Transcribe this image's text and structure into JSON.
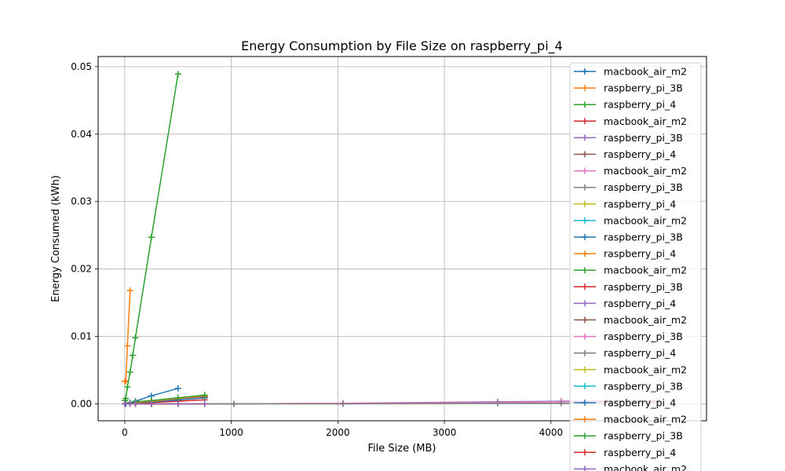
{
  "chart_data": {
    "type": "line",
    "title": "Energy Consumption by File Size on raspberry_pi_4",
    "xlabel": "File Size (MB)",
    "ylabel": "Energy Consumed (kWh)",
    "xlim": [
      -250,
      5460
    ],
    "ylim": [
      -0.0025,
      0.0515
    ],
    "xticks": [
      0,
      1000,
      2000,
      3000,
      4000
    ],
    "yticks": [
      0.0,
      0.01,
      0.02,
      0.03,
      0.04,
      0.05
    ],
    "xtick_labels": [
      "0",
      "1000",
      "2000",
      "3000",
      "4000"
    ],
    "ytick_labels": [
      "0.00",
      "0.01",
      "0.02",
      "0.03",
      "0.04",
      "0.05"
    ],
    "grid": true,
    "legend_position": "right",
    "series": [
      {
        "name": "macbook_air_m2",
        "color": "#1f77b4",
        "x": [
          1,
          10,
          50,
          100,
          250,
          500
        ],
        "y": [
          2e-05,
          5e-05,
          0.0002,
          0.0004,
          0.0012,
          0.0023
        ]
      },
      {
        "name": "raspberry_pi_3B",
        "color": "#ff7f0e",
        "x": [
          1,
          10,
          25,
          50
        ],
        "y": [
          0.0033,
          0.0034,
          0.0086,
          0.0168
        ]
      },
      {
        "name": "raspberry_pi_4",
        "color": "#2ca02c",
        "x": [
          1,
          10,
          25,
          50,
          75,
          100,
          250,
          500
        ],
        "y": [
          0.0005,
          0.0008,
          0.0025,
          0.0047,
          0.0072,
          0.0098,
          0.0247,
          0.0489
        ]
      },
      {
        "name": "macbook_air_m2",
        "color": "#d62728",
        "x": [
          1,
          50,
          100,
          250,
          500,
          750
        ],
        "y": [
          0.0,
          0.0001,
          0.0001,
          0.0002,
          0.0004,
          0.0006
        ]
      },
      {
        "name": "raspberry_pi_3B",
        "color": "#9467bd",
        "x": [
          1,
          50,
          100,
          250,
          500,
          750
        ],
        "y": [
          0.0,
          0.0001,
          0.0002,
          0.0003,
          0.0006,
          0.0009
        ]
      },
      {
        "name": "raspberry_pi_4",
        "color": "#8c564b",
        "x": [
          1,
          50,
          100,
          250,
          500,
          750
        ],
        "y": [
          0.0,
          0.0001,
          0.0002,
          0.0004,
          0.0008,
          0.0011
        ]
      },
      {
        "name": "macbook_air_m2",
        "color": "#e377c2",
        "x": [
          1,
          50,
          100,
          250,
          500,
          750
        ],
        "y": [
          0.0,
          0.0,
          0.0,
          0.0,
          0.0,
          0.0
        ]
      },
      {
        "name": "raspberry_pi_3B",
        "color": "#7f7f7f",
        "x": [
          1,
          50,
          100,
          250,
          500,
          750
        ],
        "y": [
          0.0,
          0.0,
          0.0,
          0.0,
          0.0,
          0.0
        ]
      },
      {
        "name": "raspberry_pi_4",
        "color": "#bcbd22",
        "x": [
          1,
          50,
          100,
          250,
          500,
          750
        ],
        "y": [
          0.0,
          0.0,
          0.0,
          0.0,
          0.0,
          0.0
        ]
      },
      {
        "name": "macbook_air_m2",
        "color": "#17becf",
        "x": [
          1,
          50,
          100,
          250,
          500,
          750
        ],
        "y": [
          0.0,
          0.0,
          0.0,
          0.0,
          0.0,
          0.0
        ]
      },
      {
        "name": "raspberry_pi_3B",
        "color": "#1f77b4",
        "x": [
          1,
          50,
          100,
          250,
          500,
          750
        ],
        "y": [
          0.0,
          0.0001,
          0.0002,
          0.0003,
          0.0006,
          0.0009
        ]
      },
      {
        "name": "raspberry_pi_4",
        "color": "#ff7f0e",
        "x": [
          1,
          50,
          100,
          250,
          500,
          750
        ],
        "y": [
          0.0,
          0.0001,
          0.0002,
          0.0004,
          0.0008,
          0.0012
        ]
      },
      {
        "name": "macbook_air_m2",
        "color": "#2ca02c",
        "x": [
          1,
          50,
          100,
          250,
          500,
          750
        ],
        "y": [
          0.0,
          0.0001,
          0.0003,
          0.0005,
          0.0009,
          0.0013
        ]
      },
      {
        "name": "raspberry_pi_3B",
        "color": "#d62728",
        "x": [
          1,
          50,
          100,
          250,
          500,
          750
        ],
        "y": [
          0.0,
          0.0,
          0.0,
          0.0,
          0.0,
          0.0
        ]
      },
      {
        "name": "raspberry_pi_4",
        "color": "#9467bd",
        "x": [
          1,
          1024,
          2048,
          3500,
          4096,
          5000
        ],
        "y": [
          0.0,
          0.0,
          0.0001,
          0.0003,
          0.0004,
          0.0005
        ]
      },
      {
        "name": "macbook_air_m2",
        "color": "#8c564b",
        "x": [
          1,
          50,
          100,
          250,
          500,
          750
        ],
        "y": [
          0.0,
          0.0,
          0.0,
          0.0,
          0.0,
          0.0
        ]
      },
      {
        "name": "raspberry_pi_3B",
        "color": "#e377c2",
        "x": [
          1,
          1024,
          2048,
          3500,
          4096,
          5000
        ],
        "y": [
          0.0,
          0.0,
          0.0001,
          0.0002,
          0.0003,
          0.0004
        ]
      },
      {
        "name": "raspberry_pi_4",
        "color": "#7f7f7f",
        "x": [
          1,
          1024,
          2048,
          3500,
          4096,
          5000
        ],
        "y": [
          0.0,
          0.0,
          0.0,
          0.0001,
          0.0001,
          0.0002
        ]
      },
      {
        "name": "macbook_air_m2",
        "color": "#bcbd22",
        "x": [
          1,
          50,
          100,
          250,
          500,
          750
        ],
        "y": [
          0.0,
          0.0,
          0.0,
          0.0,
          0.0,
          0.0
        ]
      },
      {
        "name": "raspberry_pi_3B",
        "color": "#17becf",
        "x": [
          1,
          50,
          100,
          250,
          500,
          750
        ],
        "y": [
          0.0,
          0.0,
          0.0,
          0.0,
          0.0,
          0.0
        ]
      },
      {
        "name": "raspberry_pi_4",
        "color": "#1f77b4",
        "x": [
          1,
          50,
          100,
          250,
          500,
          750
        ],
        "y": [
          0.0,
          0.0,
          0.0,
          0.0,
          0.0,
          0.0
        ]
      },
      {
        "name": "macbook_air_m2",
        "color": "#ff7f0e",
        "x": [
          1,
          50,
          100,
          250,
          500,
          750
        ],
        "y": [
          0.0,
          0.0,
          0.0,
          0.0,
          0.0,
          0.0
        ]
      },
      {
        "name": "raspberry_pi_3B",
        "color": "#2ca02c",
        "x": [
          1,
          50,
          100,
          250,
          500,
          750
        ],
        "y": [
          0.0,
          0.0,
          0.0,
          0.0,
          0.0,
          0.0
        ]
      },
      {
        "name": "raspberry_pi_4",
        "color": "#d62728",
        "x": [
          1,
          50,
          100,
          250,
          500,
          750
        ],
        "y": [
          0.0,
          0.0,
          0.0,
          0.0,
          0.0,
          0.0
        ]
      },
      {
        "name": "macbook_air_m2",
        "color": "#9467bd",
        "x": [
          1,
          50,
          100,
          250,
          500,
          750
        ],
        "y": [
          0.0,
          0.0,
          0.0,
          0.0,
          0.0,
          0.0
        ]
      }
    ]
  }
}
